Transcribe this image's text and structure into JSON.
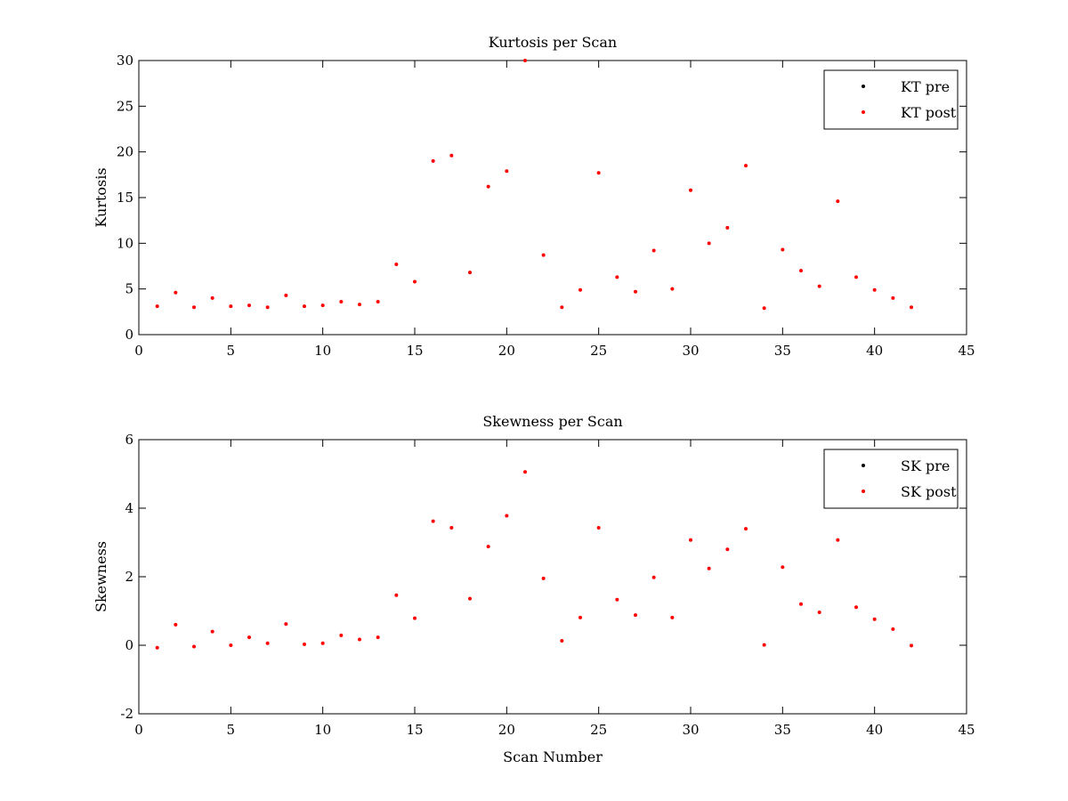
{
  "chart_data": [
    {
      "type": "scatter",
      "title": "Kurtosis per Scan",
      "xlabel": "",
      "ylabel": "Kurtosis",
      "xlim": [
        0,
        45
      ],
      "ylim": [
        0,
        30
      ],
      "xticks": [
        0,
        5,
        10,
        15,
        20,
        25,
        30,
        35,
        40,
        45
      ],
      "yticks": [
        0,
        5,
        10,
        15,
        20,
        25,
        30
      ],
      "grid": false,
      "legend_position": "top-right",
      "series": [
        {
          "name": "KT pre",
          "color": "#000000",
          "marker": "point",
          "x": [],
          "y": []
        },
        {
          "name": "KT post",
          "color": "#ff0000",
          "marker": "point",
          "x": [
            1,
            2,
            3,
            4,
            5,
            6,
            7,
            8,
            9,
            10,
            11,
            12,
            13,
            14,
            15,
            16,
            17,
            18,
            19,
            20,
            21,
            22,
            23,
            24,
            25,
            26,
            27,
            28,
            29,
            30,
            31,
            32,
            33,
            34,
            35,
            36,
            37,
            38,
            39,
            40,
            41,
            42
          ],
          "y": [
            3.1,
            4.6,
            3.0,
            4.0,
            3.1,
            3.2,
            3.0,
            4.3,
            3.1,
            3.2,
            3.6,
            3.3,
            3.6,
            7.7,
            5.8,
            19.0,
            19.6,
            6.8,
            16.2,
            17.9,
            30.0,
            8.7,
            3.0,
            4.9,
            17.7,
            6.3,
            4.7,
            9.2,
            5.0,
            15.8,
            10.0,
            11.7,
            18.5,
            2.9,
            9.3,
            7.0,
            5.3,
            14.6,
            6.3,
            4.9,
            4.0,
            3.0
          ]
        }
      ]
    },
    {
      "type": "scatter",
      "title": "Skewness per Scan",
      "xlabel": "Scan Number",
      "ylabel": "Skewness",
      "xlim": [
        0,
        45
      ],
      "ylim": [
        -2,
        6
      ],
      "xticks": [
        0,
        5,
        10,
        15,
        20,
        25,
        30,
        35,
        40,
        45
      ],
      "yticks": [
        -2,
        0,
        2,
        4,
        6
      ],
      "grid": false,
      "legend_position": "top-right",
      "series": [
        {
          "name": "SK pre",
          "color": "#000000",
          "marker": "point",
          "x": [],
          "y": []
        },
        {
          "name": "SK post",
          "color": "#ff0000",
          "marker": "point",
          "x": [
            1,
            2,
            3,
            4,
            5,
            6,
            7,
            8,
            9,
            10,
            11,
            12,
            13,
            14,
            15,
            16,
            17,
            18,
            19,
            20,
            21,
            22,
            23,
            24,
            25,
            26,
            27,
            28,
            29,
            30,
            31,
            32,
            33,
            34,
            35,
            36,
            37,
            38,
            39,
            40,
            41,
            42
          ],
          "y": [
            -0.07,
            0.6,
            -0.04,
            0.4,
            0.0,
            0.23,
            0.06,
            0.62,
            0.03,
            0.06,
            0.29,
            0.17,
            0.23,
            1.46,
            0.79,
            3.62,
            3.43,
            1.36,
            2.88,
            3.78,
            5.06,
            1.95,
            0.13,
            0.81,
            3.43,
            1.33,
            0.88,
            1.98,
            0.81,
            3.07,
            2.24,
            2.8,
            3.4,
            0.01,
            2.28,
            1.2,
            0.96,
            3.07,
            1.11,
            0.76,
            0.47,
            -0.01
          ]
        }
      ]
    }
  ]
}
